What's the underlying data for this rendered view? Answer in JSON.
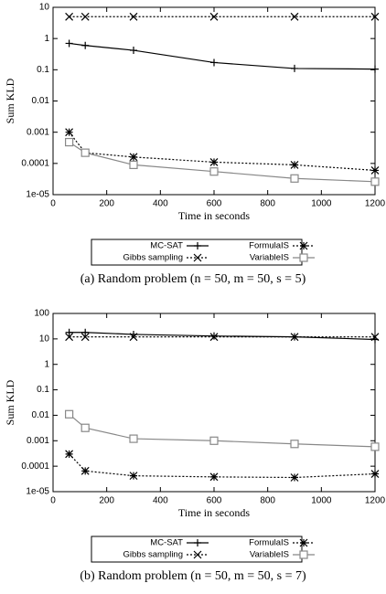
{
  "chart_data": [
    {
      "type": "line",
      "log_y": true,
      "grid": false,
      "caption": "(a) Random problem (n = 50, m = 50, s = 5)",
      "x_label": "Time in seconds",
      "y_label": "Sum KLD",
      "x": [
        60,
        120,
        300,
        600,
        900,
        1200
      ],
      "xlim": [
        0,
        1200
      ],
      "xticks": [
        0,
        200,
        400,
        600,
        800,
        1000,
        1200
      ],
      "ylim": [
        1e-05,
        10
      ],
      "yticks": [
        {
          "value": 1e-05,
          "label": "1e-05"
        },
        0.0001,
        0.001,
        0.01,
        0.1,
        1,
        10
      ],
      "series": [
        {
          "name": "MC-SAT",
          "color": "#000000",
          "dash": "solid",
          "marker": "plus",
          "values": [
            0.7,
            0.6,
            0.42,
            0.17,
            0.11,
            0.105
          ]
        },
        {
          "name": "Gibbs sampling",
          "color": "#000000",
          "dash": "dotted",
          "marker": "cross",
          "values": [
            5,
            5,
            5,
            5,
            5,
            5
          ]
        },
        {
          "name": "FormulaIS",
          "color": "#000000",
          "dash": "dotted",
          "marker": "star",
          "values": [
            0.001,
            0.00022,
            0.00016,
            0.00011,
            9e-05,
            6e-05
          ]
        },
        {
          "name": "VariableIS",
          "color": "#888888",
          "dash": "solid",
          "marker": "square",
          "values": [
            0.00048,
            0.00022,
            9e-05,
            5.5e-05,
            3.3e-05,
            2.6e-05
          ]
        }
      ]
    },
    {
      "type": "line",
      "log_y": true,
      "grid": false,
      "caption": "(b) Random problem (n = 50, m = 50, s = 7)",
      "x_label": "Time in seconds",
      "y_label": "Sum KLD",
      "x": [
        60,
        120,
        300,
        600,
        900,
        1200
      ],
      "xlim": [
        0,
        1200
      ],
      "xticks": [
        0,
        200,
        400,
        600,
        800,
        1000,
        1200
      ],
      "ylim": [
        1e-05,
        100
      ],
      "yticks": [
        {
          "value": 1e-05,
          "label": "1e-05"
        },
        0.0001,
        0.001,
        0.01,
        0.1,
        1,
        10,
        100
      ],
      "series": [
        {
          "name": "MC-SAT",
          "color": "#000000",
          "dash": "solid",
          "marker": "plus",
          "values": [
            18,
            18,
            15,
            13,
            12,
            9.5
          ]
        },
        {
          "name": "Gibbs sampling",
          "color": "#000000",
          "dash": "dotted",
          "marker": "cross",
          "values": [
            12,
            12,
            12,
            12,
            12,
            12
          ]
        },
        {
          "name": "FormulaIS",
          "color": "#000000",
          "dash": "dotted",
          "marker": "star",
          "values": [
            0.0003,
            6.5e-05,
            4.2e-05,
            3.8e-05,
            3.6e-05,
            5e-05
          ]
        },
        {
          "name": "VariableIS",
          "color": "#888888",
          "dash": "solid",
          "marker": "square",
          "values": [
            0.011,
            0.0032,
            0.0012,
            0.001,
            0.00075,
            0.00058
          ]
        }
      ]
    }
  ]
}
